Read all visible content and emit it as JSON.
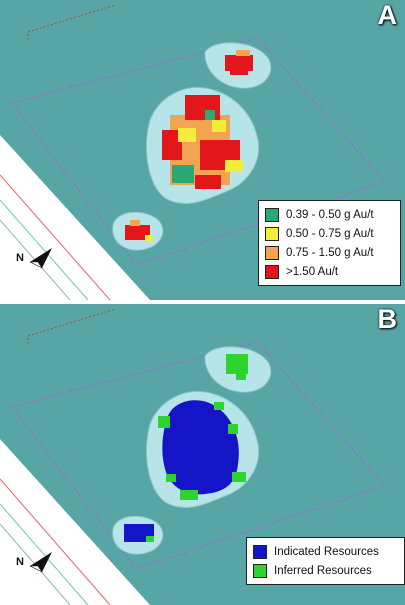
{
  "panels": [
    {
      "letter": "A",
      "compass_label": "N",
      "legend": [
        {
          "label": "0.39 - 0.50 g Au/t",
          "color": "#2aa876"
        },
        {
          "label": "0.50 - 0.75 g Au/t",
          "color": "#f1ee3a"
        },
        {
          "label": "0.75 - 1.50 g Au/t",
          "color": "#f4a451"
        },
        {
          "label": ">1.50 Au/t",
          "color": "#e3161c"
        }
      ]
    },
    {
      "letter": "B",
      "compass_label": "N",
      "legend": [
        {
          "label": "Indicated Resources",
          "color": "#1414c8"
        },
        {
          "label": "Inferred Resources",
          "color": "#2ed42e"
        }
      ]
    }
  ],
  "colors": {
    "terrain": "#58a5a5",
    "pit_wall": "#b7e4e8",
    "boundary": "#b455d8",
    "road_red": "#c44",
    "road_green": "#3c9"
  }
}
